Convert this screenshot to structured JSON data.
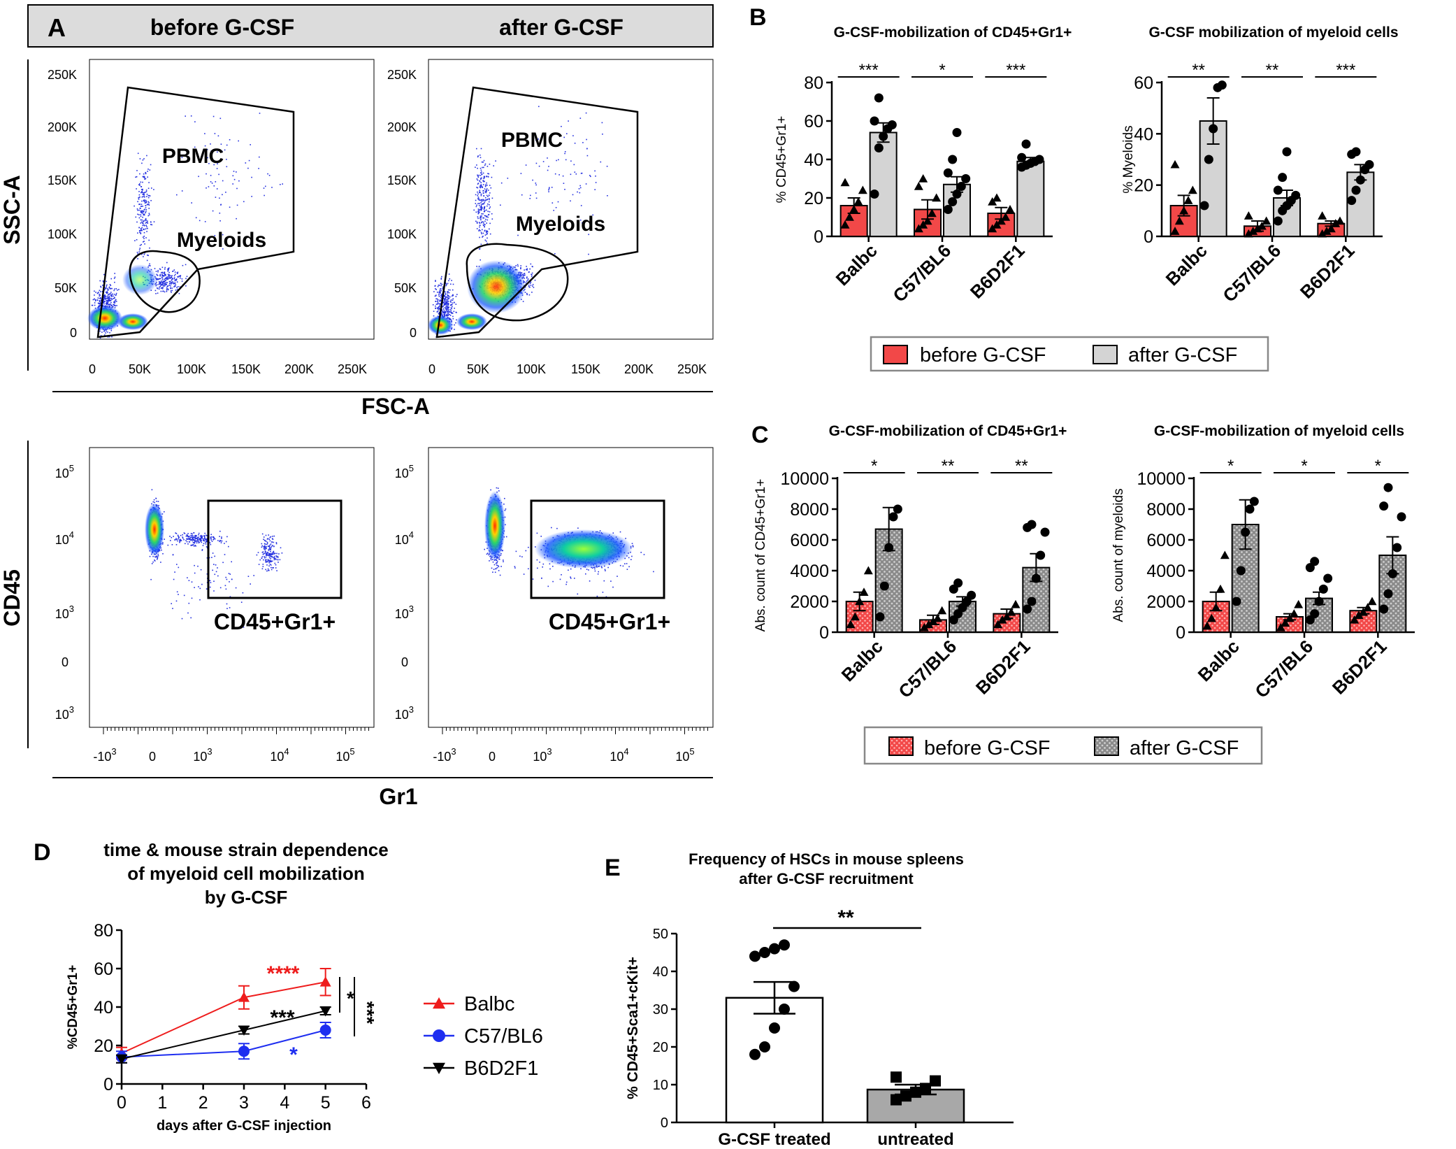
{
  "colors": {
    "red": "#f24848",
    "gray": "#d4d4d4",
    "dark": "#9a9a9a",
    "blue": "#1e2ef0",
    "black": "#000000",
    "panel_header": "#dcdcdc"
  },
  "panelA": {
    "letter": "A",
    "col_before": "before G-CSF",
    "col_after": "after G-CSF",
    "ssc_label": "SSC-A",
    "fsc_label": "FSC-A",
    "cd45_label": "CD45",
    "gr1_label": "Gr1",
    "scatter_y_ticks": [
      "250K",
      "200K",
      "150K",
      "100K",
      "50K",
      "0"
    ],
    "scatter_x_ticks": [
      "0",
      "50K",
      "100K",
      "150K",
      "200K",
      "250K"
    ],
    "log_y_ticks": [
      {
        "b": "10",
        "e": "5"
      },
      {
        "b": "10",
        "e": "4"
      },
      {
        "b": "10",
        "e": "3"
      },
      {
        "b": "0",
        "e": ""
      },
      {
        "b": "10",
        "e": "3"
      }
    ],
    "log_x_ticks": [
      {
        "b": "-10",
        "e": "3"
      },
      {
        "b": "0",
        "e": ""
      },
      {
        "b": "10",
        "e": "3"
      },
      {
        "b": "10",
        "e": "4"
      },
      {
        "b": "10",
        "e": "5"
      }
    ],
    "gate_pbmc": "PBMC",
    "gate_myeloids": "Myeloids",
    "gate_cd45gr1": "CD45+Gr1+"
  },
  "legend_bc": {
    "before": "before G-CSF",
    "after": "after G-CSF"
  },
  "chart_data": [
    {
      "id": "B1",
      "panel_letter": "B",
      "type": "bar",
      "title": "G-CSF-mobilization of CD45+Gr1+",
      "ylabel": "% CD45+Gr1+",
      "ylim": [
        0,
        80
      ],
      "yticks": [
        0,
        20,
        40,
        60,
        80
      ],
      "ytick_labels": [
        "0",
        "20",
        "40",
        "60",
        "80"
      ],
      "categories": [
        "Balbc",
        "C57/BL6",
        "B6D2F1"
      ],
      "series": [
        {
          "name": "before G-CSF",
          "values": [
            16,
            14,
            12
          ],
          "sem": [
            4,
            5,
            3
          ],
          "points": [
            [
              6,
              10,
              14,
              18,
              24,
              28
            ],
            [
              4,
              6,
              8,
              12,
              20,
              26,
              30
            ],
            [
              4,
              6,
              8,
              10,
              14,
              18,
              20
            ]
          ]
        },
        {
          "name": "after G-CSF",
          "values": [
            54,
            27,
            39
          ],
          "sem": [
            5,
            4,
            2
          ],
          "points": [
            [
              22,
              46,
              52,
              56,
              58,
              60,
              72
            ],
            [
              14,
              18,
              22,
              26,
              30,
              33,
              40,
              54
            ],
            [
              36,
              37,
              38,
              39,
              40,
              41,
              48
            ]
          ]
        }
      ],
      "significance": [
        "***",
        "*",
        "***"
      ]
    },
    {
      "id": "B2",
      "type": "bar",
      "title": "G-CSF mobilization of myeloid cells",
      "ylabel": "% Myeloids",
      "ylim": [
        0,
        60
      ],
      "yticks": [
        0,
        20,
        40,
        60
      ],
      "ytick_labels": [
        "0",
        "20",
        "40",
        "60"
      ],
      "categories": [
        "Balbc",
        "C57/BL6",
        "B6D2F1"
      ],
      "series": [
        {
          "name": "before G-CSF",
          "values": [
            12,
            4,
            5
          ],
          "sem": [
            4,
            2,
            1
          ],
          "points": [
            [
              2,
              6,
              10,
              14,
              18,
              28
            ],
            [
              1,
              2,
              3,
              4,
              6,
              8
            ],
            [
              1,
              2,
              3,
              5,
              6,
              8
            ]
          ]
        },
        {
          "name": "after G-CSF",
          "values": [
            45,
            15,
            25
          ],
          "sem": [
            9,
            3,
            3
          ],
          "points": [
            [
              12,
              30,
              42,
              58,
              59
            ],
            [
              6,
              10,
              12,
              14,
              16,
              18,
              23,
              33
            ],
            [
              14,
              18,
              22,
              26,
              28,
              32,
              33
            ]
          ]
        }
      ],
      "significance": [
        "**",
        "**",
        "***"
      ]
    },
    {
      "id": "C1",
      "panel_letter": "C",
      "type": "bar",
      "title": "G-CSF-mobilization of CD45+Gr1+",
      "ylabel": "Abs. count of CD45+Gr1+",
      "ylim": [
        0,
        10000
      ],
      "yticks": [
        0,
        2000,
        4000,
        6000,
        8000,
        10000
      ],
      "ytick_labels": [
        "0",
        "2000",
        "4000",
        "6000",
        "8000",
        "10000"
      ],
      "categories": [
        "Balbc",
        "C57/BL6",
        "B6D2F1"
      ],
      "series": [
        {
          "name": "before G-CSF",
          "values": [
            2000,
            800,
            1200
          ],
          "sem": [
            600,
            300,
            300
          ],
          "points": [
            [
              500,
              1000,
              2000,
              2600,
              4000
            ],
            [
              300,
              500,
              700,
              900,
              1400
            ],
            [
              500,
              800,
              1000,
              1300,
              1800
            ]
          ]
        },
        {
          "name": "after G-CSF",
          "values": [
            6700,
            2000,
            4200
          ],
          "sem": [
            1400,
            300,
            900
          ],
          "points": [
            [
              1000,
              3000,
              5500,
              7500,
              8000
            ],
            [
              800,
              1200,
              1600,
              2000,
              2400,
              2800,
              3200
            ],
            [
              1500,
              2000,
              3500,
              5000,
              6500,
              6800,
              7000
            ]
          ]
        }
      ],
      "significance": [
        "*",
        "**",
        "**"
      ]
    },
    {
      "id": "C2",
      "type": "bar",
      "title": "G-CSF-mobilization of myeloid cells",
      "ylabel": "Abs. count of myeloids",
      "ylim": [
        0,
        10000
      ],
      "yticks": [
        0,
        2000,
        4000,
        6000,
        8000,
        10000
      ],
      "ytick_labels": [
        "0",
        "2000",
        "4000",
        "6000",
        "8000",
        "10000"
      ],
      "categories": [
        "Balbc",
        "C57/BL6",
        "B6D2F1"
      ],
      "series": [
        {
          "name": "before G-CSF",
          "values": [
            2000,
            1000,
            1400
          ],
          "sem": [
            600,
            200,
            200
          ],
          "points": [
            [
              400,
              900,
              1600,
              2800,
              5000
            ],
            [
              300,
              600,
              900,
              1200,
              1800
            ],
            [
              800,
              1100,
              1300,
              1600,
              2000
            ]
          ]
        },
        {
          "name": "after G-CSF",
          "values": [
            7000,
            2200,
            5000
          ],
          "sem": [
            1600,
            400,
            1200
          ],
          "points": [
            [
              2000,
              4000,
              6500,
              8000,
              8500
            ],
            [
              800,
              1200,
              2000,
              2800,
              3500,
              4200,
              4600
            ],
            [
              1500,
              2500,
              3800,
              5500,
              7500,
              8200,
              9400
            ]
          ]
        }
      ],
      "significance": [
        "*",
        "*",
        "*"
      ]
    },
    {
      "id": "D",
      "panel_letter": "D",
      "type": "line",
      "title": [
        "time & mouse strain dependence",
        "of myeloid cell mobilization",
        "by G-CSF"
      ],
      "xlabel": "days after G-CSF injection",
      "ylabel": "%CD45+Gr1+",
      "xlim": [
        0,
        6
      ],
      "ylim": [
        0,
        80
      ],
      "xticks": [
        0,
        1,
        2,
        3,
        4,
        5,
        6
      ],
      "xtick_labels": [
        "0",
        "1",
        "2",
        "3",
        "4",
        "5",
        "6"
      ],
      "yticks": [
        0,
        20,
        40,
        60,
        80
      ],
      "ytick_labels": [
        "0",
        "20",
        "40",
        "60",
        "80"
      ],
      "series": [
        {
          "name": "Balbc",
          "marker": "triangle-up",
          "color": "#ee1c1c",
          "x": [
            0,
            3,
            5
          ],
          "y": [
            16,
            45,
            53
          ],
          "err": [
            3,
            6,
            7
          ]
        },
        {
          "name": "C57/BL6",
          "marker": "circle",
          "color": "#1e2ef0",
          "x": [
            0,
            3,
            5
          ],
          "y": [
            14,
            17,
            28
          ],
          "err": [
            3,
            4,
            4
          ]
        },
        {
          "name": "B6D2F1",
          "marker": "triangle-down",
          "color": "#000000",
          "x": [
            0,
            3,
            5
          ],
          "y": [
            13,
            28,
            38
          ],
          "err": [
            2,
            2,
            2
          ]
        }
      ],
      "annotations": [
        {
          "text": "****",
          "color": "#ee1c1c"
        },
        {
          "text": "***",
          "color": "#000000"
        },
        {
          "text": "*",
          "color": "#1e2ef0"
        },
        {
          "text": "*",
          "color": "#000000"
        },
        {
          "text": "***",
          "color": "#000000"
        }
      ]
    },
    {
      "id": "E",
      "panel_letter": "E",
      "type": "bar",
      "title": [
        "Frequency of HSCs in mouse spleens",
        "after G-CSF recruitment"
      ],
      "ylabel": "% CD45+Sca1+cKit+",
      "ylim": [
        0,
        50
      ],
      "yticks": [
        0,
        10,
        20,
        30,
        40,
        50
      ],
      "ytick_labels": [
        "0",
        "10",
        "20",
        "30",
        "40",
        "50"
      ],
      "categories": [
        "G-CSF treated",
        "untreated"
      ],
      "values": [
        33,
        8.7
      ],
      "sem": [
        4.2,
        1.3
      ],
      "points": [
        [
          18,
          20,
          25,
          30,
          36,
          44,
          45,
          46,
          47
        ],
        [
          6,
          7,
          8,
          9,
          11,
          12
        ]
      ],
      "significance": "**"
    }
  ]
}
